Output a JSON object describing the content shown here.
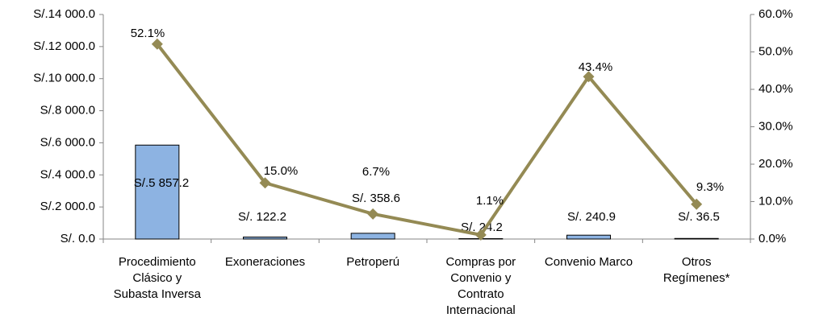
{
  "chart_data": {
    "type": "bar",
    "categories": [
      "Procedimiento Clásico y Subasta Inversa",
      "Exoneraciones",
      "Petroperú",
      "Compras por Convenio y Contrato Internacional",
      "Convenio Marco",
      "Otros Regímenes*"
    ],
    "series": [
      {
        "type": "bar",
        "color": "#8db3e2",
        "values": [
          5857.2,
          122.2,
          358.6,
          24.2,
          240.9,
          36.5
        ],
        "value_labels": [
          "S/.5 857.2",
          "S/. 122.2",
          "S/. 358.6",
          "S/. 24.2",
          "S/. 240.9",
          "S/. 36.5"
        ]
      },
      {
        "type": "line",
        "axis": "y2",
        "color": "#948a54",
        "values": [
          52.1,
          15.0,
          6.7,
          1.1,
          43.4,
          9.3
        ],
        "value_labels": [
          "52.1%",
          "15.0%",
          "6.7%",
          "1.1%",
          "43.4%",
          "9.3%"
        ]
      }
    ],
    "ylim": [
      0,
      14000
    ],
    "yticks": [
      {
        "value": 0,
        "label": "S/. 0.0"
      },
      {
        "value": 2000,
        "label": "S/.2 000.0"
      },
      {
        "value": 4000,
        "label": "S/.4 000.0"
      },
      {
        "value": 6000,
        "label": "S/.6 000.0"
      },
      {
        "value": 8000,
        "label": "S/.8 000.0"
      },
      {
        "value": 10000,
        "label": "S/.10 000.0"
      },
      {
        "value": 12000,
        "label": "S/.12 000.0"
      },
      {
        "value": 14000,
        "label": "S/.14 000.0"
      }
    ],
    "y2lim": [
      0,
      60
    ],
    "y2ticks": [
      {
        "value": 0,
        "label": "0.0%"
      },
      {
        "value": 10,
        "label": "10.0%"
      },
      {
        "value": 20,
        "label": "20.0%"
      },
      {
        "value": 30,
        "label": "30.0%"
      },
      {
        "value": 40,
        "label": "40.0%"
      },
      {
        "value": 50,
        "label": "50.0%"
      },
      {
        "value": 60,
        "label": "60.0%"
      }
    ]
  }
}
